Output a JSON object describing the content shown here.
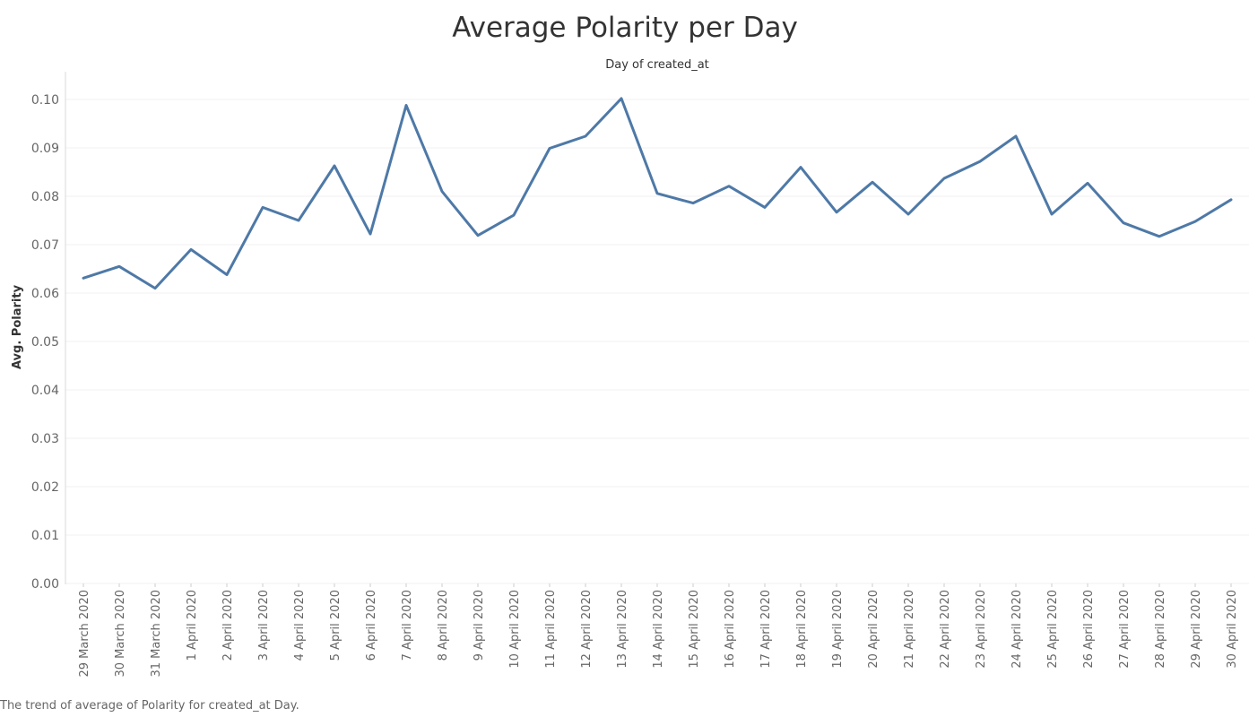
{
  "chart_data": {
    "type": "line",
    "title": "Average Polarity per Day",
    "xlabel": "Day of created_at",
    "ylabel": "Avg. Polarity",
    "ylim": [
      0,
      0.1
    ],
    "yticks": [
      "0.00",
      "0.01",
      "0.02",
      "0.03",
      "0.04",
      "0.05",
      "0.06",
      "0.07",
      "0.08",
      "0.09",
      "0.10"
    ],
    "grid": true,
    "x": [
      "29 March 2020",
      "30 March 2020",
      "31 March 2020",
      "1 April 2020",
      "2 April 2020",
      "3 April 2020",
      "4 April 2020",
      "5 April 2020",
      "6 April 2020",
      "7 April 2020",
      "8 April 2020",
      "9 April 2020",
      "10 April 2020",
      "11 April 2020",
      "12 April 2020",
      "13 April 2020",
      "14 April 2020",
      "15 April 2020",
      "16 April 2020",
      "17 April 2020",
      "18 April 2020",
      "19 April 2020",
      "20 April 2020",
      "21 April 2020",
      "22 April 2020",
      "23 April 2020",
      "24 April 2020",
      "25 April 2020",
      "26 April 2020",
      "27 April 2020",
      "28 April 2020",
      "29 April 2020",
      "30 April 2020"
    ],
    "series": [
      {
        "values": [
          0.0631,
          0.0655,
          0.061,
          0.069,
          0.0638,
          0.0777,
          0.075,
          0.0863,
          0.0722,
          0.0988,
          0.081,
          0.0719,
          0.0761,
          0.0899,
          0.0924,
          0.1002,
          0.0806,
          0.0786,
          0.0821,
          0.0777,
          0.086,
          0.0767,
          0.0829,
          0.0763,
          0.0837,
          0.0872,
          0.0924,
          0.0763,
          0.0827,
          0.0745,
          0.0717,
          0.0748,
          0.0793
        ],
        "color": "#4e79a7"
      }
    ]
  },
  "caption": "The trend of average of Polarity for created_at Day."
}
